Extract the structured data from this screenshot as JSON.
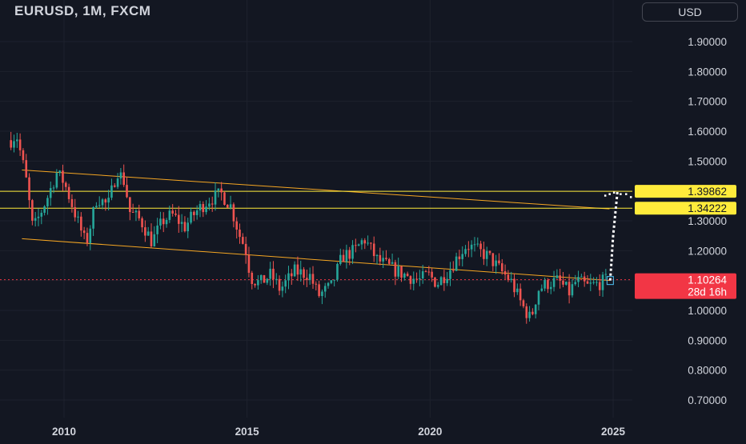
{
  "header": {
    "symbol_title": "EURUSD, 1M, FXCM"
  },
  "currency_button": {
    "label": "USD"
  },
  "colors": {
    "background": "#131722",
    "bull": "#26a69a",
    "bear": "#ef5350",
    "trendline": "#f5a623",
    "horizontal_line": "#ffeb3b",
    "current_price": "#f23645",
    "axis_text": "#d1d4dc"
  },
  "chart_data": {
    "type": "candlestick",
    "symbol": "EURUSD",
    "interval": "1M",
    "source": "FXCM",
    "ylim": [
      0.65,
      1.97
    ],
    "xlim": [
      2008.5,
      2025.6
    ],
    "y_ticks": [
      "1.90000",
      "1.80000",
      "1.70000",
      "1.60000",
      "1.50000",
      "1.40000",
      "1.30000",
      "1.20000",
      "1.10000",
      "1.00000",
      "0.90000",
      "0.80000",
      "0.70000"
    ],
    "y_tick_values": [
      1.9,
      1.8,
      1.7,
      1.6,
      1.5,
      1.4,
      1.3,
      1.2,
      1.1,
      1.0,
      0.9,
      0.8,
      0.7
    ],
    "x_ticks": [
      "2010",
      "2015",
      "2020",
      "2025"
    ],
    "x_tick_values": [
      2010,
      2015,
      2020,
      2025
    ],
    "price_path": [
      [
        2008.55,
        1.57
      ],
      [
        2008.7,
        1.59
      ],
      [
        2008.95,
        1.45
      ],
      [
        2009.15,
        1.27
      ],
      [
        2009.3,
        1.31
      ],
      [
        2009.55,
        1.38
      ],
      [
        2009.8,
        1.46
      ],
      [
        2010.0,
        1.43
      ],
      [
        2010.4,
        1.29
      ],
      [
        2010.6,
        1.22
      ],
      [
        2010.9,
        1.38
      ],
      [
        2011.2,
        1.35
      ],
      [
        2011.45,
        1.47
      ],
      [
        2011.65,
        1.43
      ],
      [
        2011.8,
        1.33
      ],
      [
        2012.1,
        1.3
      ],
      [
        2012.4,
        1.23
      ],
      [
        2012.7,
        1.3
      ],
      [
        2012.95,
        1.32
      ],
      [
        2013.3,
        1.28
      ],
      [
        2013.6,
        1.33
      ],
      [
        2013.95,
        1.37
      ],
      [
        2014.3,
        1.39
      ],
      [
        2014.55,
        1.35
      ],
      [
        2014.8,
        1.25
      ],
      [
        2014.95,
        1.21
      ],
      [
        2015.1,
        1.11
      ],
      [
        2015.35,
        1.09
      ],
      [
        2015.65,
        1.12
      ],
      [
        2015.9,
        1.07
      ],
      [
        2016.3,
        1.13
      ],
      [
        2016.7,
        1.12
      ],
      [
        2016.95,
        1.05
      ],
      [
        2017.3,
        1.08
      ],
      [
        2017.6,
        1.18
      ],
      [
        2017.95,
        1.2
      ],
      [
        2018.2,
        1.24
      ],
      [
        2018.55,
        1.17
      ],
      [
        2018.95,
        1.14
      ],
      [
        2019.3,
        1.12
      ],
      [
        2019.7,
        1.1
      ],
      [
        2019.95,
        1.12
      ],
      [
        2020.2,
        1.09
      ],
      [
        2020.55,
        1.14
      ],
      [
        2020.75,
        1.18
      ],
      [
        2021.0,
        1.22
      ],
      [
        2021.3,
        1.2
      ],
      [
        2021.6,
        1.18
      ],
      [
        2021.95,
        1.13
      ],
      [
        2022.2,
        1.1
      ],
      [
        2022.5,
        1.02
      ],
      [
        2022.75,
        0.97
      ],
      [
        2022.95,
        1.07
      ],
      [
        2023.2,
        1.09
      ],
      [
        2023.5,
        1.1
      ],
      [
        2023.8,
        1.06
      ],
      [
        2024.0,
        1.1
      ],
      [
        2024.3,
        1.08
      ],
      [
        2024.6,
        1.09
      ],
      [
        2024.8,
        1.1
      ]
    ],
    "trendlines": [
      {
        "from": [
          2008.85,
          1.47
        ],
        "to": [
          2024.9,
          1.34
        ]
      },
      {
        "from": [
          2008.85,
          1.24
        ],
        "to": [
          2024.9,
          1.1
        ]
      }
    ],
    "horizontal_lines": [
      {
        "price": 1.39862,
        "label": "1.39862"
      },
      {
        "price": 1.34222,
        "label": "1.34222"
      }
    ],
    "projection": {
      "path": [
        [
          2024.92,
          1.1
        ],
        [
          2025.0,
          1.25
        ],
        [
          2025.12,
          1.4
        ]
      ],
      "dots": [
        [
          2024.78,
          1.385
        ],
        [
          2024.9,
          1.39
        ],
        [
          2025.02,
          1.395
        ],
        [
          2025.2,
          1.39
        ],
        [
          2025.35,
          1.39
        ],
        [
          2025.48,
          1.38
        ]
      ]
    },
    "current_price": {
      "price": 1.10264,
      "label": "1.10264",
      "countdown": "28d 16h"
    }
  }
}
